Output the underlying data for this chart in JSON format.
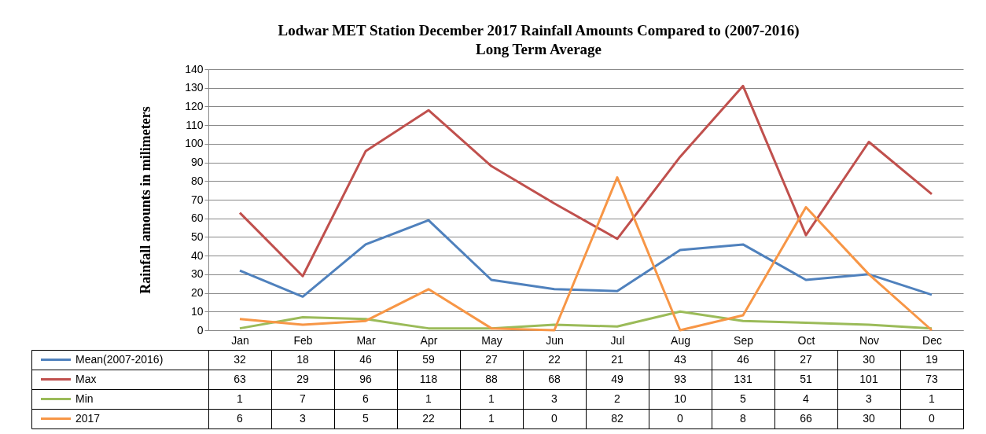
{
  "chart_data": {
    "type": "line",
    "title": "Lodwar MET Station December 2017 Rainfall Amounts Compared to (2007-2016) Long Term Average",
    "ylabel": "Rainfall amounts in milimeters",
    "categories": [
      "Jan",
      "Feb",
      "Mar",
      "Apr",
      "May",
      "Jun",
      "Jul",
      "Aug",
      "Sep",
      "Oct",
      "Nov",
      "Dec"
    ],
    "series": [
      {
        "name": "Mean(2007-2016)",
        "color": "#4f81bd",
        "values": [
          32,
          18,
          46,
          59,
          27,
          22,
          21,
          43,
          46,
          27,
          30,
          19
        ]
      },
      {
        "name": "Max",
        "color": "#c0504d",
        "values": [
          63,
          29,
          96,
          118,
          88,
          68,
          49,
          93,
          131,
          51,
          101,
          73
        ]
      },
      {
        "name": "Min",
        "color": "#9bbb59",
        "values": [
          1,
          7,
          6,
          1,
          1,
          3,
          2,
          10,
          5,
          4,
          3,
          1
        ]
      },
      {
        "name": "2017",
        "color": "#f79646",
        "values": [
          6,
          3,
          5,
          22,
          1,
          0,
          82,
          0,
          8,
          66,
          30,
          0
        ]
      }
    ],
    "ylim": [
      0,
      140
    ],
    "yticks": [
      0,
      10,
      20,
      30,
      40,
      50,
      60,
      70,
      80,
      90,
      100,
      110,
      120,
      130,
      140
    ],
    "grid": "y",
    "legend": "bottom left",
    "data_labels": true
  }
}
